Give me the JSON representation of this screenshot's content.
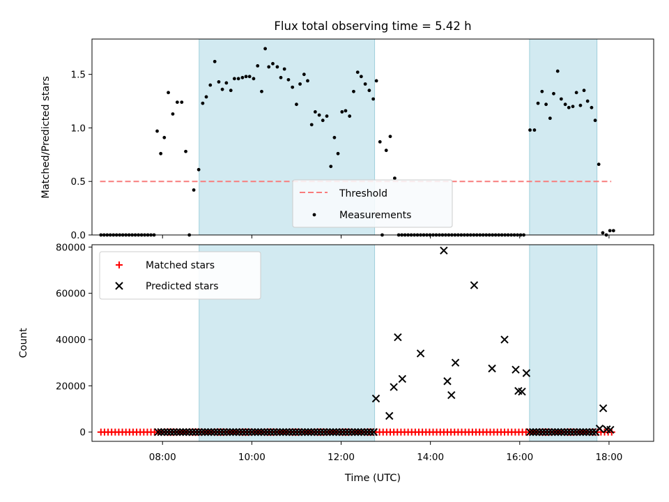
{
  "chart_data": [
    {
      "type": "scatter",
      "title": "Flux total observing time = 5.42 h",
      "xlabel": "",
      "ylabel": "Matched/Predicted stars",
      "xlim": [
        6.42,
        19.0
      ],
      "ylim": [
        0,
        1.83
      ],
      "xticks": [
        "08:00",
        "10:00",
        "12:00",
        "14:00",
        "16:00",
        "18:00"
      ],
      "yticks": [
        "0.0",
        "0.5",
        "1.0",
        "1.5"
      ],
      "ytick_values": [
        0,
        0.5,
        1.0,
        1.5
      ],
      "legend": {
        "position": "bottom-center",
        "entries": [
          "Threshold",
          "Measurements"
        ]
      },
      "shaded_intervals": [
        [
          8.82,
          12.75
        ],
        [
          16.22,
          17.73
        ]
      ],
      "threshold": {
        "name": "Threshold",
        "value": 0.5,
        "x_range": [
          6.6,
          18.05
        ],
        "color": "#f87c7c"
      },
      "series": [
        {
          "name": "Measurements",
          "color": "#000000",
          "points": [
            [
              6.62,
              0
            ],
            [
              6.69,
              0
            ],
            [
              6.76,
              0
            ],
            [
              6.83,
              0
            ],
            [
              6.9,
              0
            ],
            [
              6.97,
              0
            ],
            [
              7.04,
              0
            ],
            [
              7.11,
              0
            ],
            [
              7.18,
              0
            ],
            [
              7.25,
              0
            ],
            [
              7.32,
              0
            ],
            [
              7.39,
              0
            ],
            [
              7.46,
              0
            ],
            [
              7.53,
              0
            ],
            [
              7.6,
              0
            ],
            [
              7.67,
              0
            ],
            [
              7.74,
              0
            ],
            [
              7.81,
              0
            ],
            [
              7.88,
              0.97
            ],
            [
              7.96,
              0.76
            ],
            [
              8.04,
              0.91
            ],
            [
              8.13,
              1.33
            ],
            [
              8.23,
              1.13
            ],
            [
              8.33,
              1.24
            ],
            [
              8.43,
              1.24
            ],
            [
              8.52,
              0.78
            ],
            [
              8.6,
              0
            ],
            [
              8.7,
              0.42
            ],
            [
              8.81,
              0.61
            ],
            [
              8.9,
              1.23
            ],
            [
              8.98,
              1.29
            ],
            [
              9.07,
              1.4
            ],
            [
              9.17,
              1.62
            ],
            [
              9.26,
              1.43
            ],
            [
              9.34,
              1.36
            ],
            [
              9.43,
              1.42
            ],
            [
              9.53,
              1.35
            ],
            [
              9.61,
              1.46
            ],
            [
              9.7,
              1.46
            ],
            [
              9.79,
              1.47
            ],
            [
              9.87,
              1.48
            ],
            [
              9.95,
              1.48
            ],
            [
              10.04,
              1.46
            ],
            [
              10.13,
              1.58
            ],
            [
              10.22,
              1.34
            ],
            [
              10.3,
              1.74
            ],
            [
              10.38,
              1.57
            ],
            [
              10.47,
              1.6
            ],
            [
              10.57,
              1.57
            ],
            [
              10.65,
              1.47
            ],
            [
              10.73,
              1.55
            ],
            [
              10.82,
              1.45
            ],
            [
              10.91,
              1.38
            ],
            [
              11.0,
              1.22
            ],
            [
              11.08,
              1.41
            ],
            [
              11.17,
              1.5
            ],
            [
              11.25,
              1.44
            ],
            [
              11.34,
              1.03
            ],
            [
              11.42,
              1.15
            ],
            [
              11.51,
              1.12
            ],
            [
              11.59,
              1.07
            ],
            [
              11.68,
              1.11
            ],
            [
              11.77,
              0.64
            ],
            [
              11.85,
              0.91
            ],
            [
              11.93,
              0.76
            ],
            [
              12.02,
              1.15
            ],
            [
              12.1,
              1.16
            ],
            [
              12.19,
              1.11
            ],
            [
              12.28,
              1.34
            ],
            [
              12.37,
              1.52
            ],
            [
              12.45,
              1.48
            ],
            [
              12.54,
              1.41
            ],
            [
              12.63,
              1.35
            ],
            [
              12.72,
              1.27
            ],
            [
              12.79,
              1.44
            ],
            [
              12.87,
              0.87
            ],
            [
              12.92,
              0
            ],
            [
              13.01,
              0.79
            ],
            [
              13.1,
              0.92
            ],
            [
              13.2,
              0.53
            ],
            [
              13.29,
              0
            ],
            [
              13.36,
              0
            ],
            [
              13.43,
              0
            ],
            [
              13.5,
              0
            ],
            [
              13.57,
              0
            ],
            [
              13.64,
              0
            ],
            [
              13.71,
              0
            ],
            [
              13.78,
              0
            ],
            [
              13.85,
              0
            ],
            [
              13.92,
              0
            ],
            [
              13.99,
              0
            ],
            [
              14.06,
              0
            ],
            [
              14.13,
              0
            ],
            [
              14.2,
              0
            ],
            [
              14.27,
              0
            ],
            [
              14.34,
              0
            ],
            [
              14.41,
              0
            ],
            [
              14.48,
              0
            ],
            [
              14.55,
              0
            ],
            [
              14.62,
              0
            ],
            [
              14.69,
              0
            ],
            [
              14.76,
              0
            ],
            [
              14.83,
              0
            ],
            [
              14.9,
              0
            ],
            [
              14.97,
              0
            ],
            [
              15.04,
              0
            ],
            [
              15.11,
              0
            ],
            [
              15.18,
              0
            ],
            [
              15.25,
              0
            ],
            [
              15.32,
              0
            ],
            [
              15.39,
              0
            ],
            [
              15.46,
              0
            ],
            [
              15.53,
              0
            ],
            [
              15.6,
              0
            ],
            [
              15.67,
              0
            ],
            [
              15.74,
              0
            ],
            [
              15.81,
              0
            ],
            [
              15.88,
              0
            ],
            [
              15.95,
              0
            ],
            [
              16.02,
              0
            ],
            [
              16.09,
              0
            ],
            [
              16.23,
              0.98
            ],
            [
              16.33,
              0.98
            ],
            [
              16.41,
              1.23
            ],
            [
              16.5,
              1.34
            ],
            [
              16.59,
              1.22
            ],
            [
              16.68,
              1.09
            ],
            [
              16.76,
              1.32
            ],
            [
              16.85,
              1.53
            ],
            [
              16.93,
              1.27
            ],
            [
              17.02,
              1.22
            ],
            [
              17.1,
              1.19
            ],
            [
              17.19,
              1.2
            ],
            [
              17.27,
              1.33
            ],
            [
              17.36,
              1.21
            ],
            [
              17.44,
              1.35
            ],
            [
              17.52,
              1.25
            ],
            [
              17.61,
              1.19
            ],
            [
              17.69,
              1.07
            ],
            [
              17.77,
              0.66
            ],
            [
              17.86,
              0.02
            ],
            [
              17.94,
              0
            ],
            [
              18.02,
              0.04
            ],
            [
              18.1,
              0.04
            ]
          ]
        }
      ]
    },
    {
      "type": "scatter",
      "title": "",
      "xlabel": "Time (UTC)",
      "ylabel": "Count",
      "xlim": [
        6.42,
        19.0
      ],
      "ylim": [
        -4000,
        81000
      ],
      "xticks": [
        "08:00",
        "10:00",
        "12:00",
        "14:00",
        "16:00",
        "18:00"
      ],
      "yticks": [
        "0",
        "20000",
        "40000",
        "60000",
        "80000"
      ],
      "ytick_values": [
        0,
        20000,
        40000,
        60000,
        80000
      ],
      "legend": {
        "position": "top-left",
        "entries": [
          "Matched stars",
          "Predicted stars"
        ]
      },
      "shaded_intervals": [
        [
          8.82,
          12.75
        ],
        [
          16.22,
          17.73
        ]
      ],
      "series": [
        {
          "name": "Matched stars",
          "color": "#ff0000",
          "marker": "plus",
          "x_range": [
            6.62,
            18.1
          ],
          "x_step": 0.08,
          "value": 0
        },
        {
          "name": "Predicted stars",
          "color": "#000000",
          "marker": "x",
          "points": [
            [
              12.78,
              14500
            ],
            [
              13.08,
              7000
            ],
            [
              13.18,
              19500
            ],
            [
              13.27,
              41000
            ],
            [
              13.37,
              23000
            ],
            [
              13.78,
              34000
            ],
            [
              14.3,
              78500
            ],
            [
              14.38,
              22000
            ],
            [
              14.47,
              16000
            ],
            [
              14.56,
              30000
            ],
            [
              14.98,
              63500
            ],
            [
              15.38,
              27500
            ],
            [
              15.66,
              40000
            ],
            [
              15.91,
              27000
            ],
            [
              15.97,
              17800
            ],
            [
              16.05,
              17500
            ],
            [
              16.15,
              25500
            ],
            [
              17.79,
              1500
            ],
            [
              17.87,
              10300
            ],
            [
              17.95,
              1200
            ],
            [
              18.03,
              1000
            ]
          ],
          "baseline": [
            {
              "x_range": [
                7.9,
                12.75
              ],
              "x_step": 0.07,
              "value": 0
            },
            {
              "x_range": [
                16.23,
                17.73
              ],
              "x_step": 0.07,
              "value": 0
            }
          ]
        }
      ]
    }
  ]
}
